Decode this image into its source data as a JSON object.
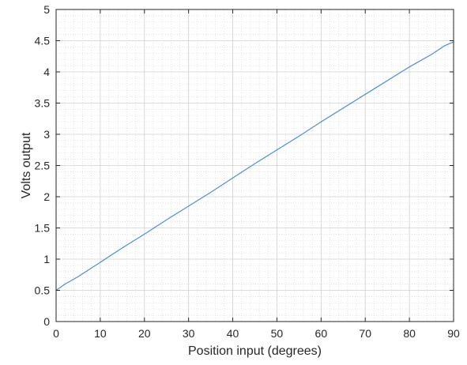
{
  "chart_data": {
    "type": "line",
    "title": "",
    "xlabel": "Position input (degrees)",
    "ylabel": "Volts output",
    "xlim": [
      0,
      90
    ],
    "ylim": [
      0,
      5
    ],
    "xticks": [
      0,
      10,
      20,
      30,
      40,
      50,
      60,
      70,
      80,
      90
    ],
    "yticks": [
      0,
      0.5,
      1,
      1.5,
      2,
      2.5,
      3,
      3.5,
      4,
      4.5,
      5
    ],
    "xtick_labels": [
      "0",
      "10",
      "20",
      "30",
      "40",
      "50",
      "60",
      "70",
      "80",
      "90"
    ],
    "ytick_labels": [
      "0",
      "0.5",
      "1",
      "1.5",
      "2",
      "2.5",
      "3",
      "3.5",
      "4",
      "4.5",
      "5"
    ],
    "grid": true,
    "minor_grid": true,
    "series": [
      {
        "color": "#4a90d9",
        "x": [
          0,
          2,
          5,
          10,
          15,
          20,
          25,
          30,
          35,
          40,
          45,
          50,
          55,
          60,
          65,
          70,
          75,
          80,
          85,
          88,
          90
        ],
        "y": [
          0.5,
          0.6,
          0.72,
          0.95,
          1.18,
          1.4,
          1.63,
          1.85,
          2.07,
          2.3,
          2.53,
          2.75,
          2.97,
          3.2,
          3.42,
          3.64,
          3.86,
          4.08,
          4.28,
          4.42,
          4.48
        ]
      }
    ]
  }
}
